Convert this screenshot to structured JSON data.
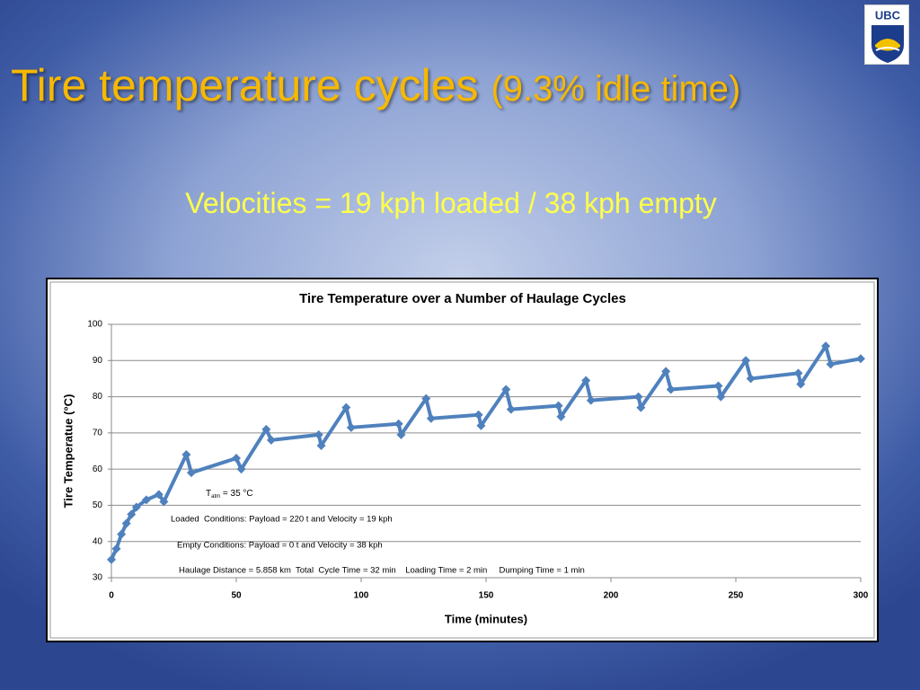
{
  "slide": {
    "title": "Tire temperature cycles",
    "title_note": "(9.3% idle time)",
    "subtitle": "Velocities = 19 kph loaded / 38 kph empty",
    "logo": "UBC"
  },
  "chart_data": {
    "type": "line",
    "title": "Tire Temperature over a Number of Haulage Cycles",
    "x_label": "Time (minutes)",
    "y_label": "Tire Temperatue (°C)",
    "x": [
      0,
      2,
      4,
      6,
      8,
      10,
      14,
      19,
      21,
      30,
      32,
      50,
      52,
      62,
      64,
      83,
      84,
      94,
      96,
      115,
      116,
      126,
      128,
      147,
      148,
      158,
      160,
      179,
      180,
      190,
      192,
      211,
      212,
      222,
      224,
      243,
      244,
      254,
      256,
      275,
      276,
      286,
      288,
      300
    ],
    "series": [
      {
        "name": "Tire temperature",
        "color": "#4f81bd",
        "values": [
          35,
          38,
          42,
          45,
          47.5,
          49.5,
          51.5,
          53,
          51,
          64,
          59,
          63,
          60,
          71,
          68,
          69.5,
          66.5,
          77,
          71.5,
          72.5,
          69.5,
          79.5,
          74,
          75,
          72,
          82,
          76.5,
          77.5,
          74.5,
          84.5,
          79,
          80,
          77,
          87,
          82,
          83,
          80,
          90,
          85,
          86.5,
          83.5,
          94,
          89,
          90.5
        ]
      }
    ],
    "xlim": [
      0,
      300
    ],
    "xticks": [
      0,
      50,
      100,
      150,
      200,
      250,
      300
    ],
    "ylim": [
      30,
      100
    ],
    "yticks": [
      30,
      40,
      50,
      60,
      70,
      80,
      90,
      100
    ],
    "grid": true,
    "annotations": [
      {
        "base": "T",
        "subscript": "atm",
        "text": " = 35 °C"
      },
      "Loaded  Conditions: Payload = 220 t and Velocity = 19 kph",
      "Empty Conditions: Payload = 0 t and Velocity = 38 kph",
      "Haulage Distance = 5.858 km  Total  Cycle Time = 32 min    Loading Time = 2 min     Dumping Time = 1 min"
    ]
  }
}
